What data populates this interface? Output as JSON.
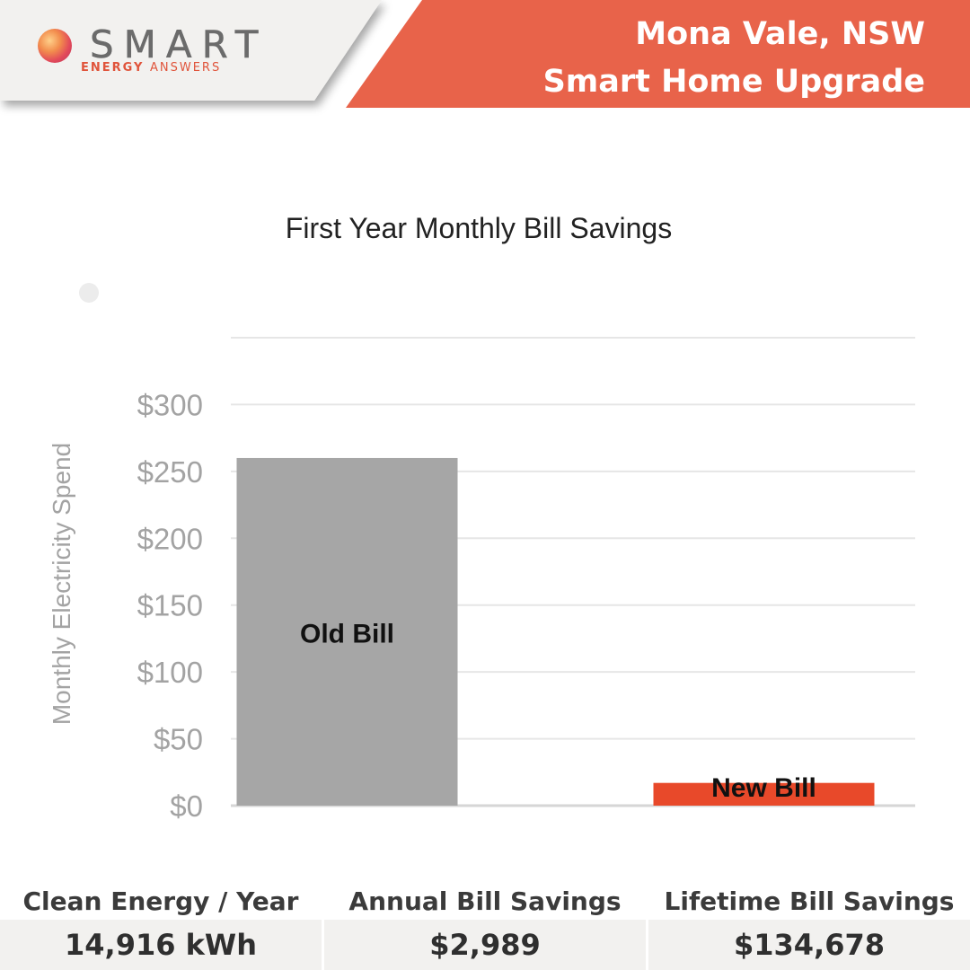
{
  "brand": {
    "name": "SMART",
    "tagline_bold": "ENERGY",
    "tagline_thin": "ANSWERS"
  },
  "header": {
    "location": "Mona Vale, NSW",
    "subtitle": "Smart Home Upgrade",
    "accent_color": "#e8634a",
    "panel_color": "#f2f1ef"
  },
  "chart_data": {
    "type": "bar",
    "title": "First Year Monthly Bill Savings",
    "ylabel": "Monthly Electricity Spend",
    "xlabel": "",
    "ylim": [
      0,
      350
    ],
    "yticks": [
      {
        "value": 0,
        "label": "$0"
      },
      {
        "value": 50,
        "label": "$50"
      },
      {
        "value": 100,
        "label": "$100"
      },
      {
        "value": 150,
        "label": "$150"
      },
      {
        "value": 200,
        "label": "$200"
      },
      {
        "value": 250,
        "label": "$250"
      },
      {
        "value": 300,
        "label": "$300"
      }
    ],
    "gridlines": [
      0,
      50,
      100,
      150,
      200,
      250,
      300,
      350
    ],
    "grid": true,
    "legend": "none",
    "bars": [
      {
        "label": "Old Bill",
        "value": 260,
        "color": "#a6a6a6"
      },
      {
        "label": "New Bill",
        "value": 17,
        "color": "#e8492a"
      }
    ]
  },
  "stats": [
    {
      "label": "Clean Energy / Year",
      "value": "14,916 kWh"
    },
    {
      "label": "Annual Bill Savings",
      "value": "$2,989"
    },
    {
      "label": "Lifetime Bill Savings",
      "value": "$134,678"
    }
  ]
}
